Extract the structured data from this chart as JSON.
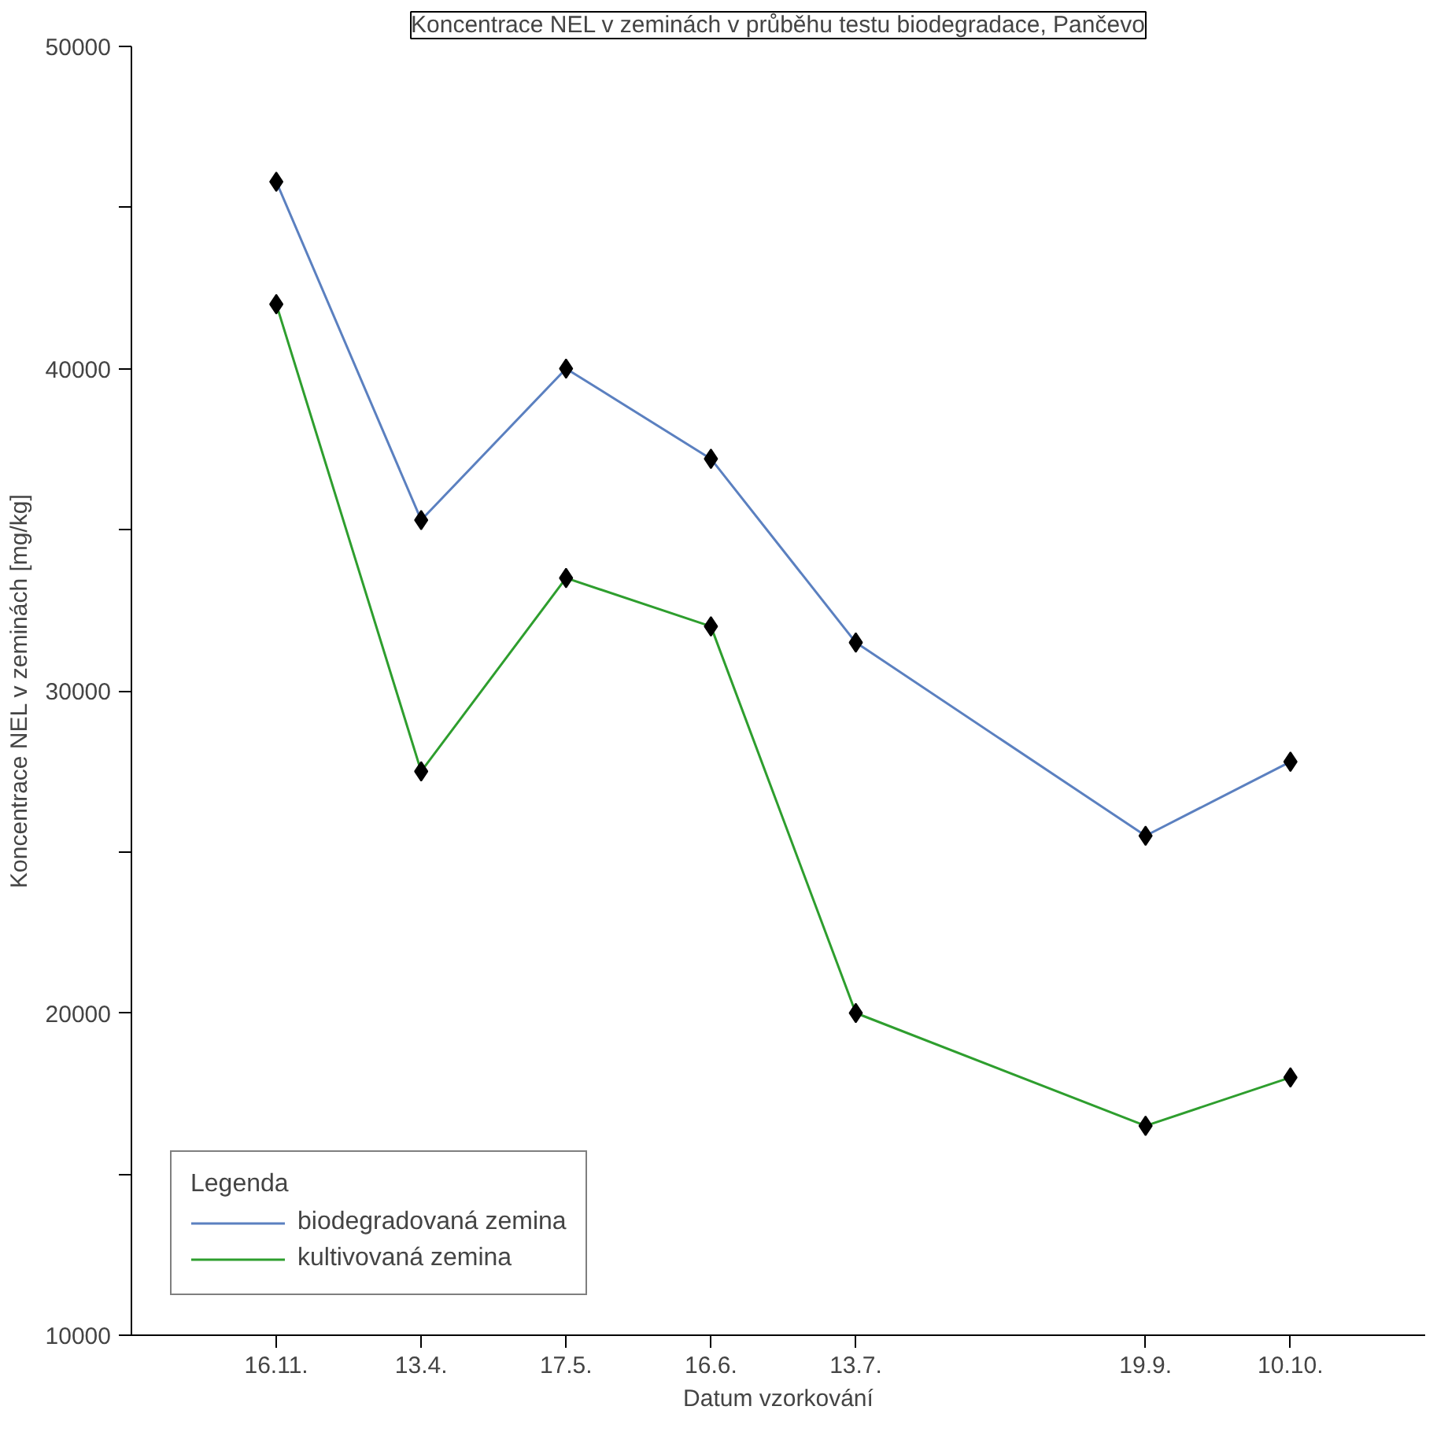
{
  "chart_data": {
    "type": "line",
    "title": "Koncentrace NEL v zeminách v průběhu testu biodegradace, Pančevo",
    "xlabel": "Datum vzorkování",
    "ylabel": "Koncentrace NEL v zeminách [mg/kg]",
    "categories": [
      "16.11.",
      "13.4.",
      "17.5.",
      "16.6.",
      "13.7.",
      null,
      "19.9.",
      "10.10."
    ],
    "ylim": [
      10000,
      50000
    ],
    "yticks": [
      10000,
      {
        "value": 15000,
        "label": null
      },
      20000,
      {
        "value": 25000,
        "label": null
      },
      30000,
      {
        "value": 35000,
        "label": null
      },
      40000,
      {
        "value": 45000,
        "label": null
      },
      50000
    ],
    "series": [
      {
        "name": "biodegradovaná zemina",
        "color": "#5b80c0",
        "values": [
          45800,
          35300,
          40000,
          37200,
          31500,
          null,
          25500,
          27800
        ]
      },
      {
        "name": "kultivovaná zemina",
        "color": "#2e9e2e",
        "values": [
          42000,
          27500,
          33500,
          32000,
          20000,
          null,
          16500,
          18000
        ]
      }
    ],
    "legend_title": "Legenda",
    "legend": "bottom left",
    "marker": "diamond",
    "grid": false
  }
}
